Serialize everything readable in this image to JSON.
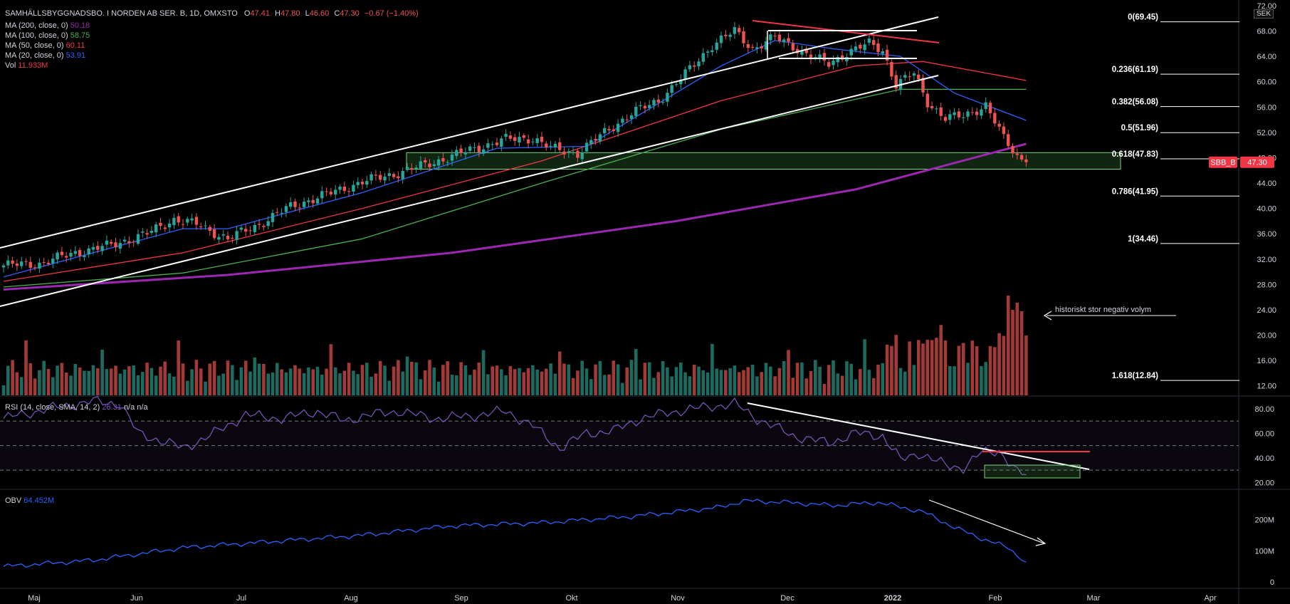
{
  "header": {
    "symbol": "SAMHÄLLSBYGGNADSBO. I NORDEN AB SER. B, 1D, OMXSTO",
    "open_label": "O",
    "open": "47.41",
    "high_label": "H",
    "high": "47.80",
    "low_label": "L",
    "low": "46.60",
    "close_label": "C",
    "close": "47.30",
    "change": "−0.67 (−1.40%)"
  },
  "indicators": [
    {
      "label": "MA (200, close, 0)",
      "value": "50.18",
      "color": "#9c27b0"
    },
    {
      "label": "MA (100, close, 0)",
      "value": "58.75",
      "color": "#4caf50"
    },
    {
      "label": "MA (50, close, 0)",
      "value": "60.11",
      "color": "#f23645"
    },
    {
      "label": "MA (20, close, 0)",
      "value": "53.91",
      "color": "#2962ff"
    },
    {
      "label": "Vol",
      "value": "11.933M",
      "color": "#f23645"
    }
  ],
  "currency_badge": "SEK",
  "price_tag": {
    "symbol": "SBB_B",
    "value": "47.30"
  },
  "colors": {
    "up": "#26a69a",
    "down": "#ef5350",
    "vol_up": "#1b6b61",
    "vol_down": "#a33a36"
  },
  "chart_data": {
    "type": "candlestick",
    "title": "SAMHÄLLSBYGGNADSBO. I NORDEN AB SER. B, 1D, OMXSTO",
    "x_months": [
      "Maj",
      "Jun",
      "Jul",
      "Aug",
      "Sep",
      "Okt",
      "Nov",
      "Dec",
      "2022",
      "Feb",
      "Mar",
      "Apr"
    ],
    "price_axis": {
      "ylim": [
        10.5,
        72
      ],
      "ticks": [
        "12.00",
        "16.00",
        "20.00",
        "24.00",
        "28.00",
        "32.00",
        "36.00",
        "40.00",
        "44.00",
        "48.00",
        "52.00",
        "56.00",
        "60.00",
        "64.00",
        "68.00",
        "72.00"
      ]
    },
    "close_points": [
      {
        "i": 0,
        "v": 31.0
      },
      {
        "i": 8,
        "v": 31.3
      },
      {
        "i": 16,
        "v": 33.0
      },
      {
        "i": 24,
        "v": 34.2
      },
      {
        "i": 32,
        "v": 36.0
      },
      {
        "i": 38,
        "v": 38.3
      },
      {
        "i": 43,
        "v": 37.5
      },
      {
        "i": 50,
        "v": 35.2
      },
      {
        "i": 57,
        "v": 37.5
      },
      {
        "i": 64,
        "v": 40.3
      },
      {
        "i": 72,
        "v": 42.2
      },
      {
        "i": 80,
        "v": 44.2
      },
      {
        "i": 88,
        "v": 45.6
      },
      {
        "i": 96,
        "v": 47.3
      },
      {
        "i": 104,
        "v": 49.2
      },
      {
        "i": 112,
        "v": 50.9
      },
      {
        "i": 118,
        "v": 51.1
      },
      {
        "i": 122,
        "v": 49.5
      },
      {
        "i": 128,
        "v": 48.7
      },
      {
        "i": 134,
        "v": 52.0
      },
      {
        "i": 140,
        "v": 55.0
      },
      {
        "i": 146,
        "v": 57.0
      },
      {
        "i": 152,
        "v": 61.2
      },
      {
        "i": 158,
        "v": 65.8
      },
      {
        "i": 163,
        "v": 68.0
      },
      {
        "i": 167,
        "v": 65.2
      },
      {
        "i": 172,
        "v": 67.0
      },
      {
        "i": 176,
        "v": 65.6
      },
      {
        "i": 180,
        "v": 64.0
      },
      {
        "i": 184,
        "v": 62.8
      },
      {
        "i": 188,
        "v": 64.6
      },
      {
        "i": 193,
        "v": 66.0
      },
      {
        "i": 196,
        "v": 65.0
      },
      {
        "i": 199,
        "v": 59.5
      },
      {
        "i": 203,
        "v": 61.3
      },
      {
        "i": 206,
        "v": 56.8
      },
      {
        "i": 210,
        "v": 54.2
      },
      {
        "i": 214,
        "v": 54.6
      },
      {
        "i": 219,
        "v": 56.3
      },
      {
        "i": 223,
        "v": 51.0
      },
      {
        "i": 226,
        "v": 48.3
      },
      {
        "i": 228,
        "v": 47.3
      }
    ],
    "moving_averages": [
      {
        "name": "MA 200",
        "color": "#9c27b0",
        "points": [
          [
            0,
            27.2
          ],
          [
            50,
            29.5
          ],
          [
            100,
            33.0
          ],
          [
            150,
            38.0
          ],
          [
            190,
            43.0
          ],
          [
            228,
            50.2
          ]
        ]
      },
      {
        "name": "MA 100",
        "color": "#4caf50",
        "points": [
          [
            0,
            27.6
          ],
          [
            40,
            29.8
          ],
          [
            80,
            35.2
          ],
          [
            120,
            44.0
          ],
          [
            160,
            52.5
          ],
          [
            200,
            58.8
          ],
          [
            228,
            58.8
          ]
        ]
      },
      {
        "name": "MA 50",
        "color": "#f23645",
        "points": [
          [
            0,
            28.5
          ],
          [
            40,
            33.0
          ],
          [
            80,
            40.0
          ],
          [
            120,
            47.5
          ],
          [
            160,
            57.0
          ],
          [
            190,
            62.5
          ],
          [
            205,
            63.2
          ],
          [
            228,
            60.2
          ]
        ]
      },
      {
        "name": "MA 20",
        "color": "#2962ff",
        "points": [
          [
            0,
            29.2
          ],
          [
            40,
            36.8
          ],
          [
            50,
            36.8
          ],
          [
            80,
            42.5
          ],
          [
            110,
            49.5
          ],
          [
            130,
            49.8
          ],
          [
            160,
            62.5
          ],
          [
            172,
            66.5
          ],
          [
            185,
            65.2
          ],
          [
            200,
            64.0
          ],
          [
            212,
            58.2
          ],
          [
            228,
            53.9
          ]
        ]
      }
    ],
    "volume_last": "11.933M",
    "fibonacci": [
      {
        "label": "0(69.45)",
        "value": 69.45
      },
      {
        "label": "0.236(61.19)",
        "value": 61.19
      },
      {
        "label": "0.382(56.08)",
        "value": 56.08
      },
      {
        "label": "0.5(51.96)",
        "value": 51.96
      },
      {
        "label": "0.618(47.83)",
        "value": 47.83
      },
      {
        "label": "0.786(41.95)",
        "value": 41.95
      },
      {
        "label": "1(34.46)",
        "value": 34.46
      },
      {
        "label": "1.618(12.84)",
        "value": 12.84
      }
    ],
    "support_zone": [
      46.2,
      48.8
    ],
    "annotation": "historiskt stor negativ volym",
    "rsi": {
      "label": "RSI (14, close, SMA, 14, 2)",
      "value": "26.31",
      "na1": "n/a",
      "na2": "n/a",
      "ylim": [
        15,
        88
      ],
      "ticks": [
        "20.00",
        "40.00",
        "60.00",
        "80.00"
      ],
      "bands": [
        30,
        50,
        70
      ],
      "points": [
        [
          0,
          72
        ],
        [
          10,
          80
        ],
        [
          20,
          86
        ],
        [
          26,
          84
        ],
        [
          30,
          60
        ],
        [
          40,
          48
        ],
        [
          46,
          58
        ],
        [
          54,
          75
        ],
        [
          62,
          72
        ],
        [
          70,
          78
        ],
        [
          76,
          70
        ],
        [
          80,
          74
        ],
        [
          88,
          78
        ],
        [
          96,
          72
        ],
        [
          104,
          74
        ],
        [
          112,
          78
        ],
        [
          118,
          66
        ],
        [
          124,
          48
        ],
        [
          130,
          60
        ],
        [
          136,
          62
        ],
        [
          142,
          72
        ],
        [
          150,
          78
        ],
        [
          158,
          82
        ],
        [
          163,
          84
        ],
        [
          168,
          72
        ],
        [
          176,
          58
        ],
        [
          184,
          52
        ],
        [
          190,
          60
        ],
        [
          196,
          58
        ],
        [
          200,
          38
        ],
        [
          204,
          44
        ],
        [
          210,
          34
        ],
        [
          214,
          32
        ],
        [
          218,
          44
        ],
        [
          222,
          46
        ],
        [
          226,
          28
        ],
        [
          228,
          26
        ]
      ]
    },
    "obv": {
      "label": "OBV",
      "value": "64.452M",
      "ylim": [
        -20,
        290
      ],
      "ticks": [
        "0",
        "100M",
        "200M"
      ],
      "points": [
        [
          0,
          50
        ],
        [
          20,
          70
        ],
        [
          40,
          110
        ],
        [
          60,
          130
        ],
        [
          80,
          150
        ],
        [
          100,
          180
        ],
        [
          120,
          190
        ],
        [
          140,
          210
        ],
        [
          160,
          240
        ],
        [
          165,
          260
        ],
        [
          175,
          255
        ],
        [
          185,
          245
        ],
        [
          195,
          255
        ],
        [
          205,
          225
        ],
        [
          212,
          175
        ],
        [
          218,
          140
        ],
        [
          224,
          110
        ],
        [
          228,
          64
        ]
      ]
    }
  }
}
